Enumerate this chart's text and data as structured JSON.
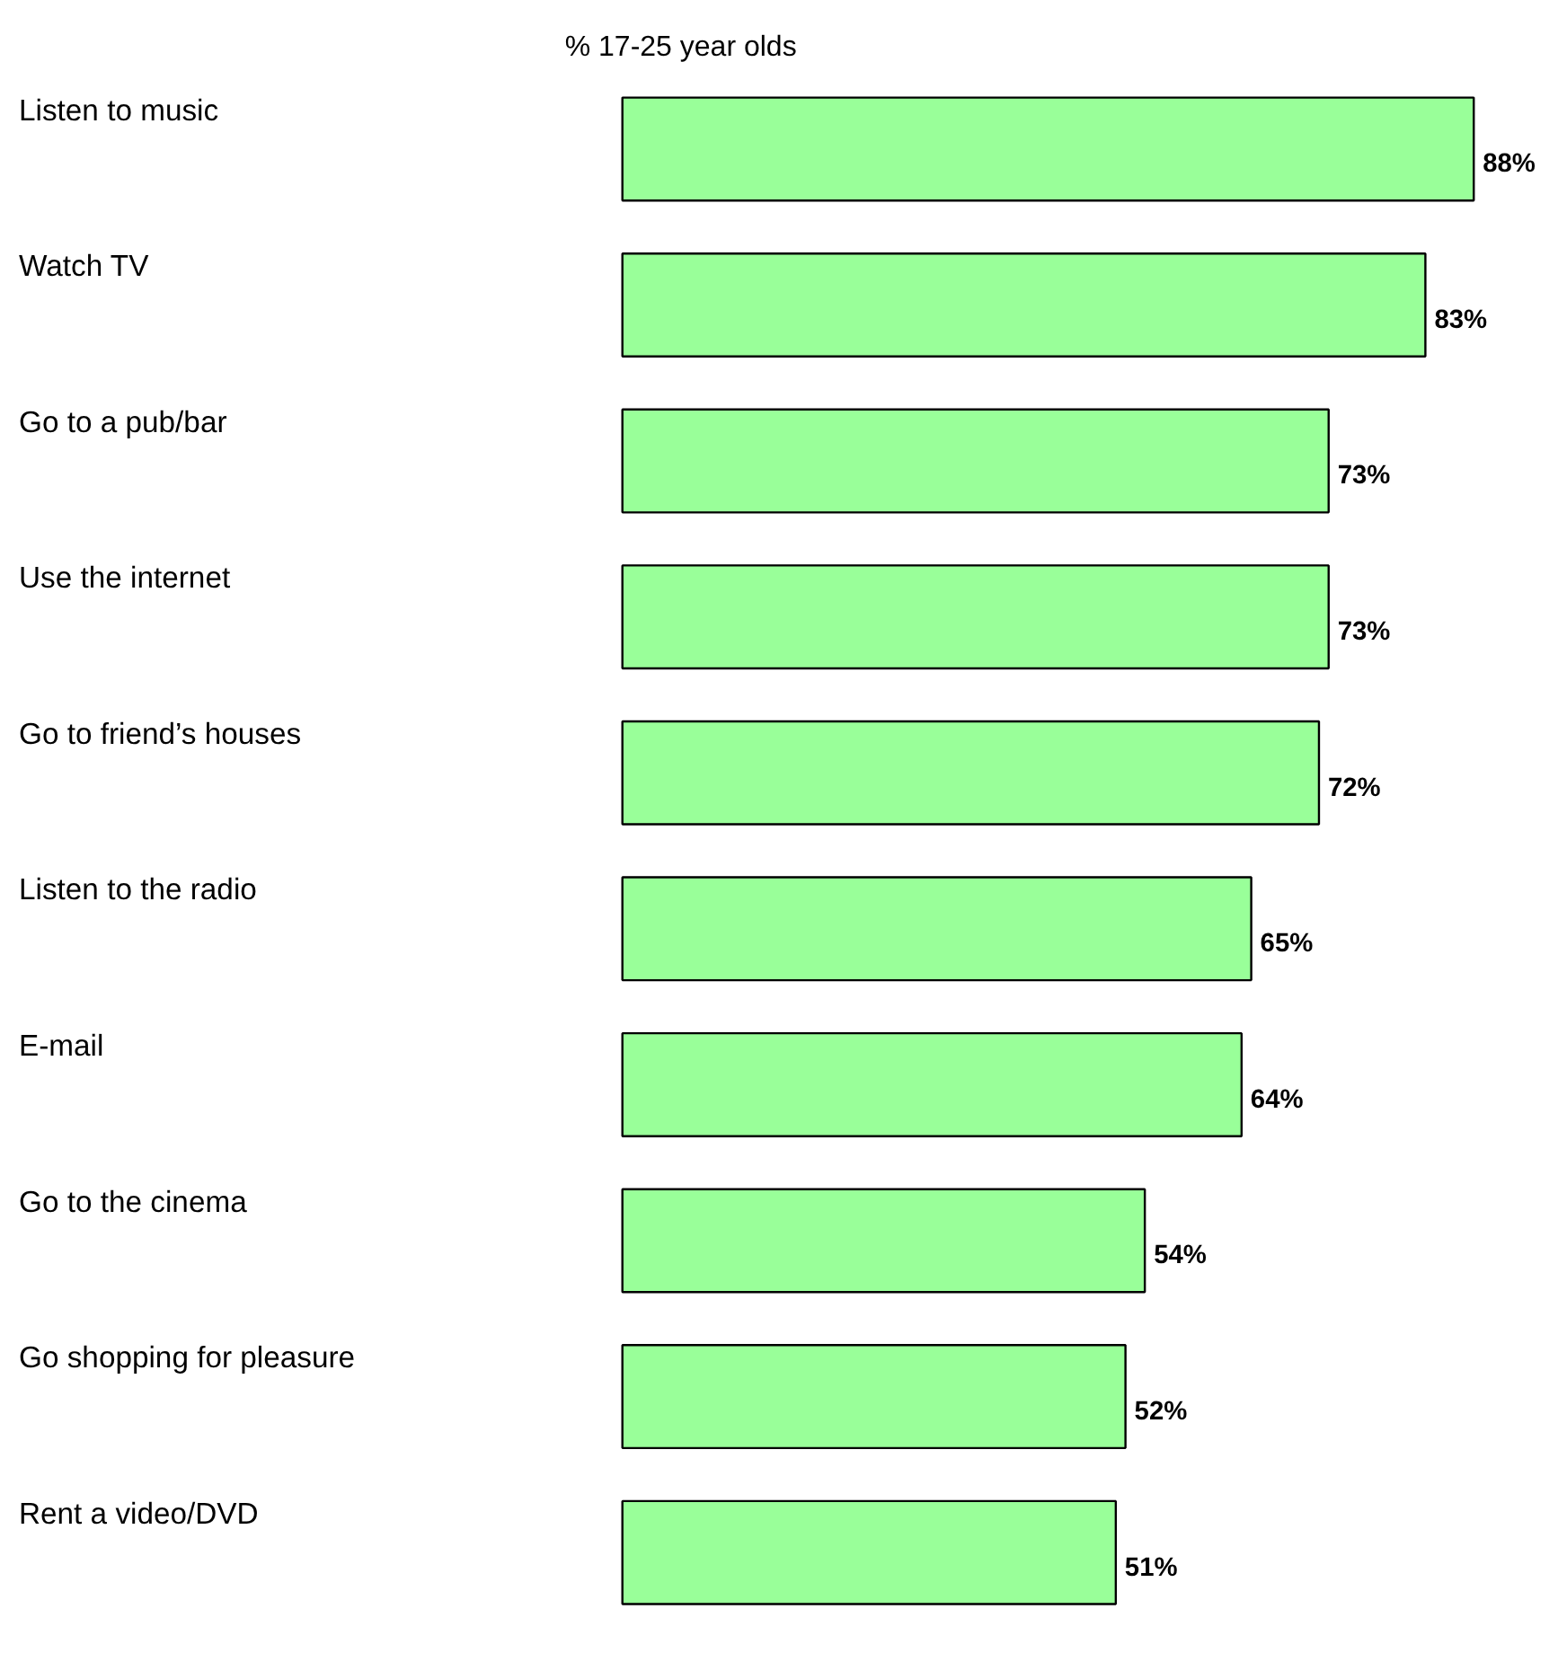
{
  "chart_data": {
    "type": "bar",
    "orientation": "horizontal",
    "title": "% 17-25 year olds",
    "categories": [
      "Listen to music",
      "Watch TV",
      "Go to a pub/bar",
      "Use the internet",
      "Go to friend’s houses",
      "Listen to the radio",
      "E-mail",
      "Go to the cinema",
      "Go shopping for pleasure",
      "Rent a video/DVD"
    ],
    "values": [
      88,
      83,
      73,
      73,
      72,
      65,
      64,
      54,
      52,
      51
    ],
    "color": "#99ff99",
    "value_labels": [
      "88%",
      "83%",
      "73%",
      "73%",
      "72%",
      "65%",
      "64%",
      "54%",
      "52%",
      "51%"
    ]
  }
}
